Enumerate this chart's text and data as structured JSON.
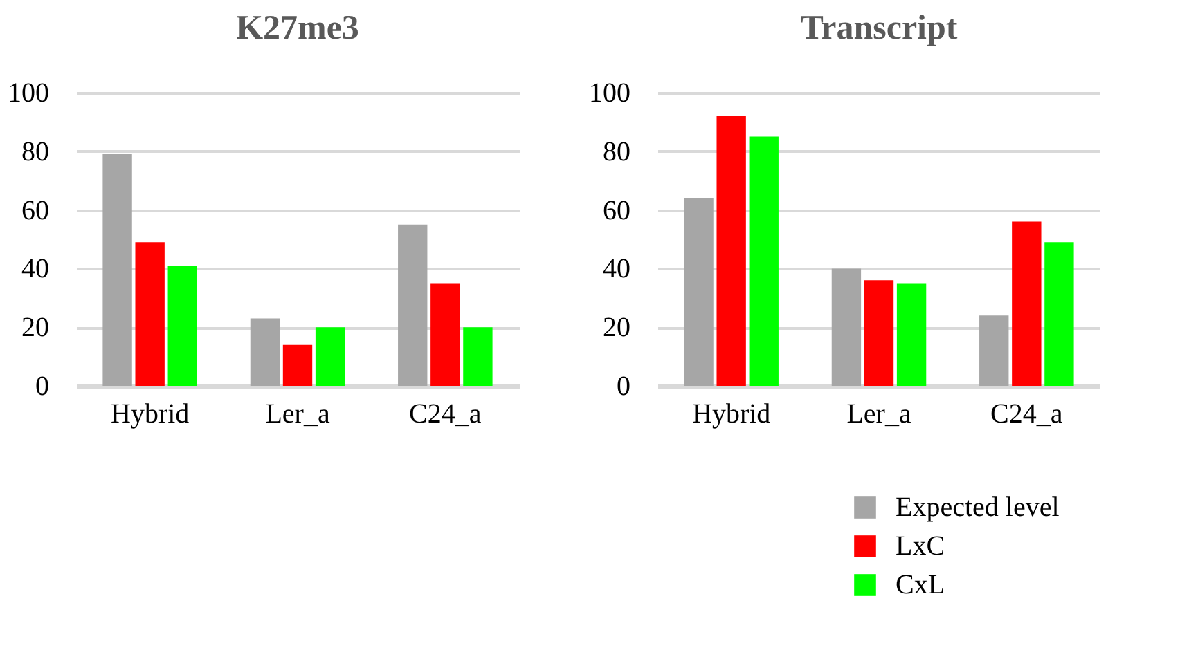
{
  "chart_data": [
    {
      "type": "bar",
      "title": "K27me3",
      "categories": [
        "Hybrid",
        "Ler_a",
        "C24_a"
      ],
      "ylim": [
        0,
        100
      ],
      "yticks": [
        0,
        20,
        40,
        60,
        80,
        100
      ],
      "grid": "y",
      "series": [
        {
          "color": "#a6a6a6",
          "values": [
            79,
            23,
            55
          ]
        },
        {
          "color": "#ff0000",
          "values": [
            49,
            14,
            35
          ]
        },
        {
          "color": "#00ff00",
          "values": [
            41,
            20,
            20
          ]
        }
      ]
    },
    {
      "type": "bar",
      "title": "Transcript",
      "categories": [
        "Hybrid",
        "Ler_a",
        "C24_a"
      ],
      "ylim": [
        0,
        100
      ],
      "yticks": [
        0,
        20,
        40,
        60,
        80,
        100
      ],
      "grid": "y",
      "legend": "bottom right",
      "series": [
        {
          "name": "Expected level",
          "color": "#a6a6a6",
          "values": [
            64,
            40,
            24
          ]
        },
        {
          "name": "LxC",
          "color": "#ff0000",
          "values": [
            92,
            36,
            56
          ]
        },
        {
          "name": "CxL",
          "color": "#00ff00",
          "values": [
            85,
            35,
            49
          ]
        }
      ]
    }
  ]
}
